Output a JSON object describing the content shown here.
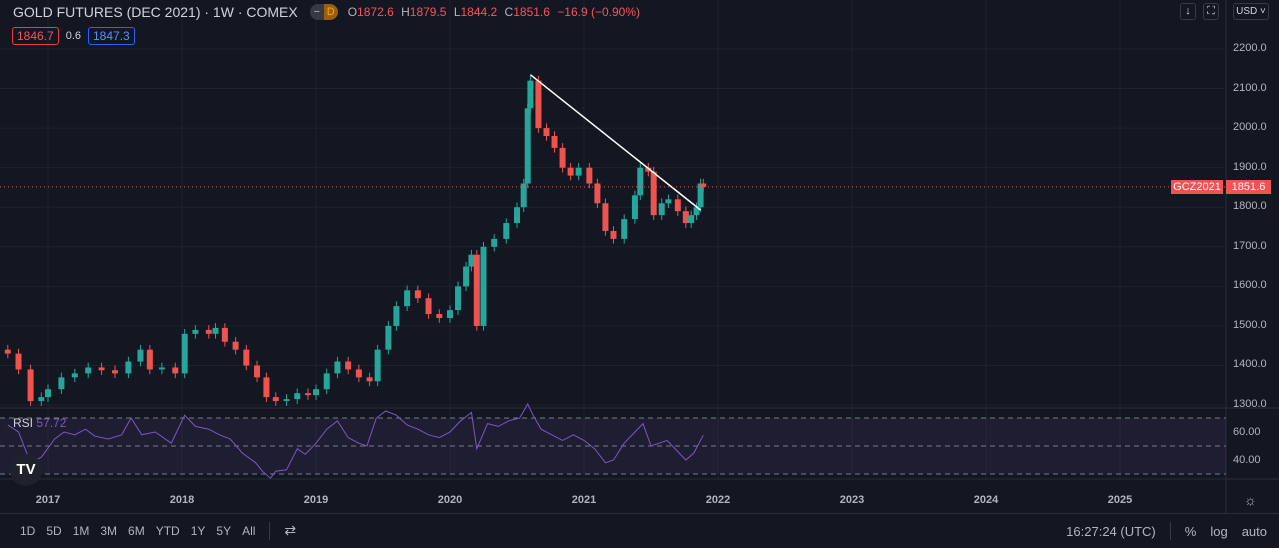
{
  "header": {
    "title": "GOLD FUTURES (DEC 2021) · 1W · COMEX",
    "d_badge": "D",
    "ohlc": {
      "o_label": "O",
      "o": "1872.6",
      "h_label": "H",
      "h": "1879.5",
      "l_label": "L",
      "l": "1844.2",
      "c_label": "C",
      "c": "1851.6",
      "change": "−16.9 (−0.90%)"
    },
    "bid": "1846.7",
    "spread": "0.6",
    "ask": "1847.3"
  },
  "toolbar": {
    "down_icon": "↓",
    "currency": "USD"
  },
  "price_tag": {
    "symbol": "GCZ2021",
    "price": "1851.6"
  },
  "indicator": {
    "name": "RSI",
    "value": "57.72",
    "levels": [
      "60.00",
      "40.00"
    ]
  },
  "bottom": {
    "ranges": [
      "1D",
      "5D",
      "1M",
      "3M",
      "6M",
      "YTD",
      "1Y",
      "5Y",
      "All"
    ],
    "time": "16:27:24 (UTC)",
    "percent": "%",
    "log": "log",
    "auto": "auto"
  },
  "colors": {
    "up": "#26a69a",
    "down": "#ef5350",
    "rsi": "#7e57c2",
    "trend": "#ffffff"
  },
  "chart_data": {
    "type": "candlestick",
    "title": "GOLD FUTURES (DEC 2021) · 1W · COMEX",
    "ylim": [
      1300,
      2200
    ],
    "y_ticks": [
      "2200.0",
      "2100.0",
      "2000.0",
      "1900.0",
      "1800.0",
      "1700.0",
      "1600.0",
      "1500.0",
      "1400.0",
      "1300.0"
    ],
    "x_ticks": [
      "2017",
      "2018",
      "2019",
      "2020",
      "2021",
      "2022",
      "2023",
      "2024",
      "2025"
    ],
    "last_price": 1851.6,
    "closes": [
      [
        2016.7,
        1430
      ],
      [
        2016.78,
        1390
      ],
      [
        2016.87,
        1310
      ],
      [
        2016.95,
        1320
      ],
      [
        2017.0,
        1340
      ],
      [
        2017.1,
        1370
      ],
      [
        2017.2,
        1380
      ],
      [
        2017.3,
        1395
      ],
      [
        2017.4,
        1388
      ],
      [
        2017.5,
        1380
      ],
      [
        2017.6,
        1410
      ],
      [
        2017.69,
        1440
      ],
      [
        2017.76,
        1390
      ],
      [
        2017.85,
        1395
      ],
      [
        2017.95,
        1380
      ],
      [
        2018.02,
        1480
      ],
      [
        2018.1,
        1490
      ],
      [
        2018.2,
        1480
      ],
      [
        2018.25,
        1495
      ],
      [
        2018.32,
        1460
      ],
      [
        2018.4,
        1440
      ],
      [
        2018.48,
        1400
      ],
      [
        2018.56,
        1370
      ],
      [
        2018.63,
        1320
      ],
      [
        2018.7,
        1310
      ],
      [
        2018.78,
        1315
      ],
      [
        2018.86,
        1330
      ],
      [
        2018.94,
        1325
      ],
      [
        2019.0,
        1340
      ],
      [
        2019.08,
        1380
      ],
      [
        2019.16,
        1410
      ],
      [
        2019.24,
        1390
      ],
      [
        2019.32,
        1370
      ],
      [
        2019.4,
        1360
      ],
      [
        2019.46,
        1440
      ],
      [
        2019.54,
        1500
      ],
      [
        2019.6,
        1550
      ],
      [
        2019.68,
        1590
      ],
      [
        2019.76,
        1570
      ],
      [
        2019.84,
        1530
      ],
      [
        2019.92,
        1520
      ],
      [
        2020.0,
        1540
      ],
      [
        2020.06,
        1600
      ],
      [
        2020.12,
        1650
      ],
      [
        2020.16,
        1680
      ],
      [
        2020.2,
        1500
      ],
      [
        2020.25,
        1700
      ],
      [
        2020.33,
        1720
      ],
      [
        2020.42,
        1760
      ],
      [
        2020.5,
        1800
      ],
      [
        2020.55,
        1860
      ],
      [
        2020.58,
        2050
      ],
      [
        2020.6,
        2120
      ],
      [
        2020.66,
        2000
      ],
      [
        2020.72,
        1980
      ],
      [
        2020.78,
        1950
      ],
      [
        2020.84,
        1900
      ],
      [
        2020.9,
        1880
      ],
      [
        2020.96,
        1900
      ],
      [
        2021.04,
        1860
      ],
      [
        2021.1,
        1810
      ],
      [
        2021.16,
        1740
      ],
      [
        2021.22,
        1720
      ],
      [
        2021.3,
        1770
      ],
      [
        2021.38,
        1830
      ],
      [
        2021.42,
        1900
      ],
      [
        2021.48,
        1890
      ],
      [
        2021.52,
        1780
      ],
      [
        2021.58,
        1810
      ],
      [
        2021.63,
        1820
      ],
      [
        2021.7,
        1790
      ],
      [
        2021.76,
        1760
      ],
      [
        2021.8,
        1780
      ],
      [
        2021.84,
        1800
      ],
      [
        2021.87,
        1860
      ],
      [
        2021.89,
        1851.6
      ]
    ],
    "trendline": [
      [
        2020.6,
        2135
      ],
      [
        2021.87,
        1793
      ]
    ],
    "rsi": {
      "ylim": [
        20,
        80
      ],
      "levels": [
        70,
        50,
        30
      ],
      "values": [
        [
          2016.7,
          65
        ],
        [
          2016.78,
          60
        ],
        [
          2016.87,
          38
        ],
        [
          2016.95,
          42
        ],
        [
          2017.05,
          55
        ],
        [
          2017.12,
          60
        ],
        [
          2017.2,
          58
        ],
        [
          2017.28,
          62
        ],
        [
          2017.35,
          57
        ],
        [
          2017.45,
          55
        ],
        [
          2017.55,
          58
        ],
        [
          2017.62,
          70
        ],
        [
          2017.7,
          58
        ],
        [
          2017.8,
          60
        ],
        [
          2017.92,
          52
        ],
        [
          2018.02,
          72
        ],
        [
          2018.1,
          64
        ],
        [
          2018.2,
          62
        ],
        [
          2018.28,
          58
        ],
        [
          2018.36,
          55
        ],
        [
          2018.45,
          45
        ],
        [
          2018.55,
          38
        ],
        [
          2018.6,
          32
        ],
        [
          2018.66,
          27
        ],
        [
          2018.7,
          32
        ],
        [
          2018.78,
          33
        ],
        [
          2018.86,
          48
        ],
        [
          2018.92,
          44
        ],
        [
          2019.0,
          52
        ],
        [
          2019.08,
          62
        ],
        [
          2019.16,
          68
        ],
        [
          2019.24,
          56
        ],
        [
          2019.32,
          52
        ],
        [
          2019.38,
          50
        ],
        [
          2019.45,
          70
        ],
        [
          2019.52,
          75
        ],
        [
          2019.6,
          72
        ],
        [
          2019.68,
          65
        ],
        [
          2019.76,
          62
        ],
        [
          2019.84,
          58
        ],
        [
          2019.92,
          56
        ],
        [
          2020.0,
          60
        ],
        [
          2020.08,
          68
        ],
        [
          2020.16,
          74
        ],
        [
          2020.2,
          48
        ],
        [
          2020.28,
          66
        ],
        [
          2020.36,
          64
        ],
        [
          2020.44,
          68
        ],
        [
          2020.52,
          70
        ],
        [
          2020.58,
          80
        ],
        [
          2020.62,
          72
        ],
        [
          2020.68,
          62
        ],
        [
          2020.76,
          58
        ],
        [
          2020.84,
          54
        ],
        [
          2020.92,
          58
        ],
        [
          2021.0,
          54
        ],
        [
          2021.08,
          48
        ],
        [
          2021.16,
          38
        ],
        [
          2021.22,
          40
        ],
        [
          2021.3,
          52
        ],
        [
          2021.38,
          60
        ],
        [
          2021.44,
          66
        ],
        [
          2021.5,
          50
        ],
        [
          2021.56,
          52
        ],
        [
          2021.62,
          54
        ],
        [
          2021.7,
          46
        ],
        [
          2021.76,
          40
        ],
        [
          2021.82,
          45
        ],
        [
          2021.89,
          57.72
        ]
      ]
    }
  }
}
